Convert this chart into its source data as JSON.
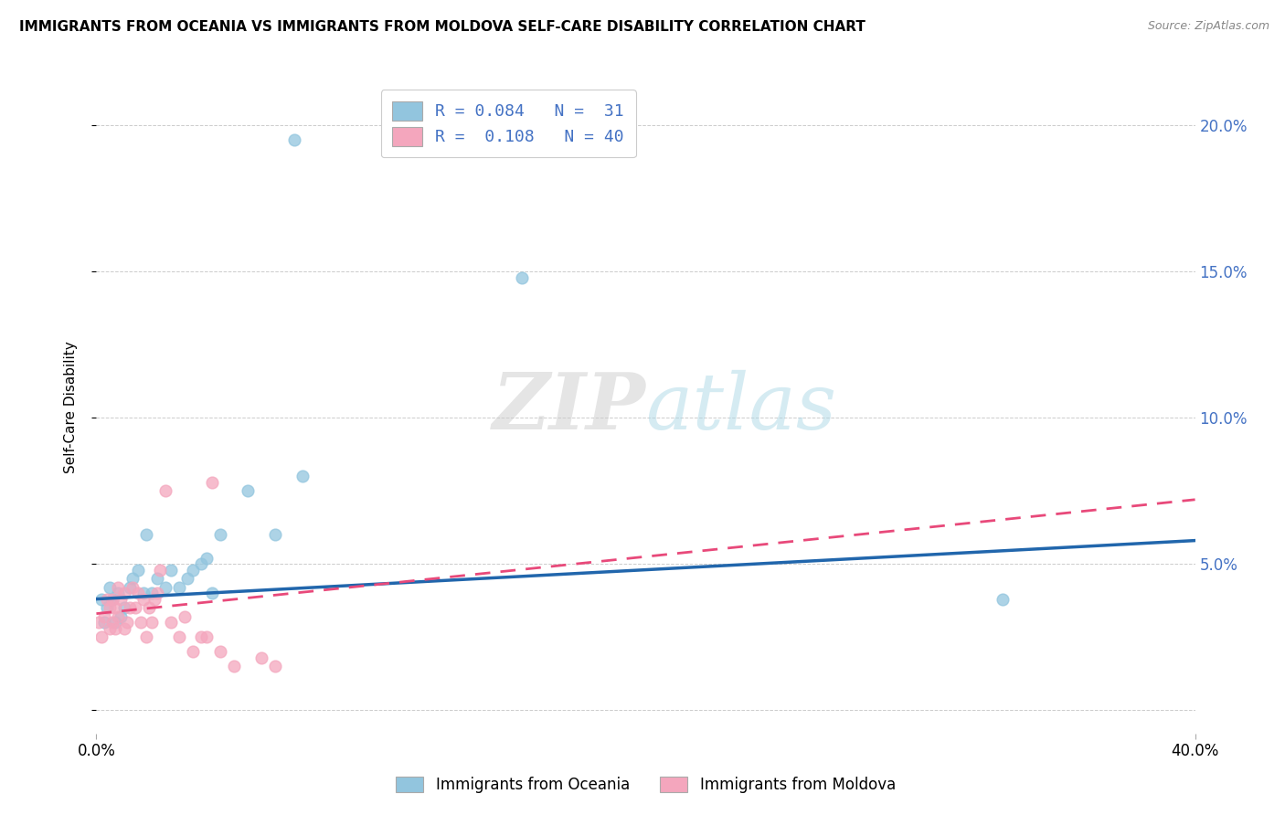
{
  "title": "IMMIGRANTS FROM OCEANIA VS IMMIGRANTS FROM MOLDOVA SELF-CARE DISABILITY CORRELATION CHART",
  "source": "Source: ZipAtlas.com",
  "ylabel": "Self-Care Disability",
  "xlim": [
    0.0,
    0.4
  ],
  "ylim": [
    -0.008,
    0.215
  ],
  "yticks": [
    0.0,
    0.05,
    0.1,
    0.15,
    0.2
  ],
  "ytick_labels": [
    "",
    "5.0%",
    "10.0%",
    "15.0%",
    "20.0%"
  ],
  "xtick_positions": [
    0.0,
    0.4
  ],
  "xtick_labels": [
    "0.0%",
    "40.0%"
  ],
  "color_blue": "#92c5de",
  "color_pink": "#f4a6bd",
  "line_blue": "#2166ac",
  "line_pink": "#e8497a",
  "legend1_label": "Immigrants from Oceania",
  "legend2_label": "Immigrants from Moldova",
  "legend_r1": "R = 0.084",
  "legend_n1": "N =  31",
  "legend_r2": "R =  0.108",
  "legend_n2": "N = 40",
  "line_blue_x0": 0.0,
  "line_blue_y0": 0.038,
  "line_blue_x1": 0.4,
  "line_blue_y1": 0.058,
  "line_pink_x0": 0.0,
  "line_pink_y0": 0.033,
  "line_pink_x1": 0.4,
  "line_pink_y1": 0.072,
  "oceania_x": [
    0.002,
    0.003,
    0.004,
    0.005,
    0.006,
    0.007,
    0.008,
    0.009,
    0.01,
    0.012,
    0.013,
    0.015,
    0.017,
    0.018,
    0.02,
    0.022,
    0.025,
    0.027,
    0.03,
    0.033,
    0.035,
    0.038,
    0.04,
    0.042,
    0.045,
    0.055,
    0.065,
    0.075,
    0.155,
    0.33,
    0.072
  ],
  "oceania_y": [
    0.038,
    0.03,
    0.035,
    0.042,
    0.038,
    0.03,
    0.04,
    0.032,
    0.035,
    0.042,
    0.045,
    0.048,
    0.04,
    0.06,
    0.04,
    0.045,
    0.042,
    0.048,
    0.042,
    0.045,
    0.048,
    0.05,
    0.052,
    0.04,
    0.06,
    0.075,
    0.06,
    0.08,
    0.148,
    0.038,
    0.195
  ],
  "moldova_x": [
    0.001,
    0.002,
    0.003,
    0.004,
    0.005,
    0.005,
    0.006,
    0.006,
    0.007,
    0.007,
    0.008,
    0.008,
    0.009,
    0.01,
    0.01,
    0.011,
    0.012,
    0.013,
    0.014,
    0.015,
    0.016,
    0.017,
    0.018,
    0.019,
    0.02,
    0.021,
    0.022,
    0.023,
    0.025,
    0.027,
    0.03,
    0.032,
    0.035,
    0.038,
    0.04,
    0.042,
    0.045,
    0.05,
    0.06,
    0.065
  ],
  "moldova_y": [
    0.03,
    0.025,
    0.032,
    0.038,
    0.028,
    0.035,
    0.038,
    0.03,
    0.035,
    0.028,
    0.042,
    0.032,
    0.038,
    0.04,
    0.028,
    0.03,
    0.035,
    0.042,
    0.035,
    0.04,
    0.03,
    0.038,
    0.025,
    0.035,
    0.03,
    0.038,
    0.04,
    0.048,
    0.075,
    0.03,
    0.025,
    0.032,
    0.02,
    0.025,
    0.025,
    0.078,
    0.02,
    0.015,
    0.018,
    0.015
  ]
}
